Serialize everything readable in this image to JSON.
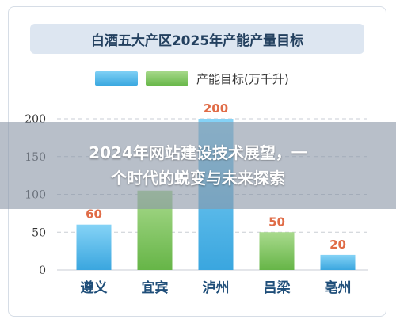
{
  "chart_data": {
    "type": "bar",
    "title": "白酒五大产区2025年产能产量目标",
    "legend": [
      "",
      "产能目标(万千升)"
    ],
    "categories": [
      "遵义",
      "宜宾",
      "泸州",
      "吕梁",
      "亳州"
    ],
    "values": [
      60,
      105,
      200,
      50,
      20
    ],
    "data_labels": [
      "60",
      "",
      "200",
      "50",
      "20"
    ],
    "bar_colors": [
      "#49b8ec",
      "#7cc35a",
      "#49b8ec",
      "#7cc35a",
      "#49b8ec"
    ],
    "label_color": "#e06c47",
    "ylim": [
      0,
      200
    ],
    "yticks": [
      "0",
      "50",
      "100",
      "150",
      "200"
    ],
    "grid": true
  },
  "overlay": {
    "line1": "2024年网站建设技术展望，一",
    "line2": "个时代的蜕变与未来探索"
  },
  "colors": {
    "blue": "#49b8ec",
    "green": "#7cc35a",
    "title_bg": "#dde6f1",
    "title_text": "#23405f"
  }
}
